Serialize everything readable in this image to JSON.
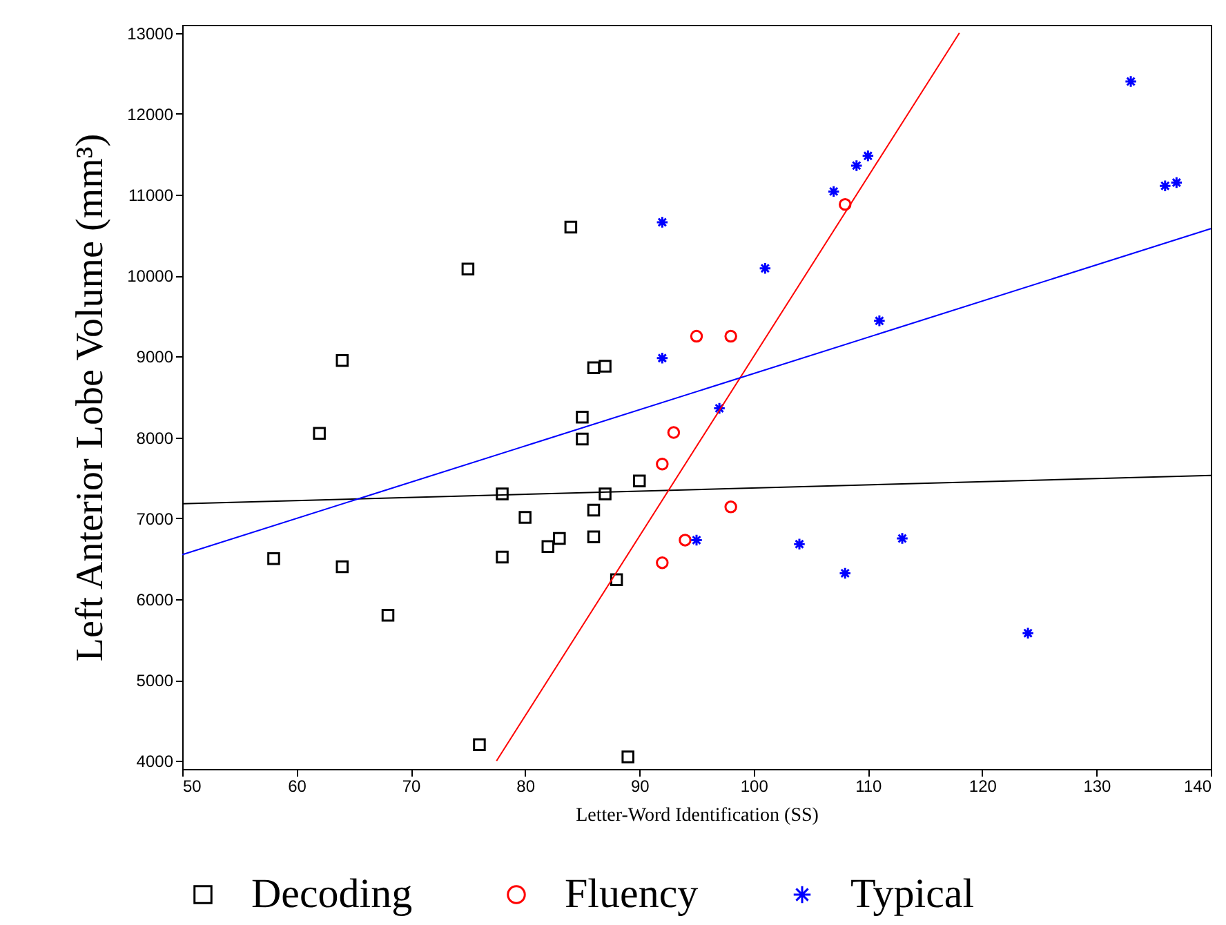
{
  "chart_data": {
    "type": "scatter",
    "xlabel": "Letter-Word Identification (SS)",
    "ylabel": "Left Anterior Lobe Volume (mm³)",
    "xlim": [
      50,
      140
    ],
    "xticks": [
      50,
      60,
      70,
      80,
      90,
      100,
      110,
      120,
      130,
      140
    ],
    "ylim": [
      3900,
      13100
    ],
    "yticks": [
      4000,
      5000,
      6000,
      7000,
      8000,
      9000,
      10000,
      11000,
      12000,
      13000
    ],
    "legend": "bottom",
    "grid": false,
    "series": [
      {
        "name": "Decoding",
        "type": "scatter",
        "marker": "square",
        "color": "#000000",
        "x": [
          58,
          62,
          64,
          64,
          68,
          75,
          76,
          78,
          78,
          80,
          82,
          83,
          84,
          85,
          85,
          86,
          87,
          86,
          86,
          87,
          88,
          89,
          90
        ],
        "values": [
          6500,
          8050,
          8950,
          6400,
          5800,
          10080,
          4200,
          7300,
          6520,
          7010,
          6650,
          6750,
          10600,
          8250,
          7980,
          8860,
          8880,
          7100,
          6770,
          7300,
          6240,
          4050,
          7460
        ]
      },
      {
        "name": "Fluency",
        "type": "scatter",
        "marker": "circle",
        "color": "#ff0000",
        "x": [
          92,
          92,
          93,
          94,
          95,
          98,
          98,
          108
        ],
        "values": [
          7670,
          6450,
          8060,
          6730,
          9250,
          9250,
          7140,
          10880
        ]
      },
      {
        "name": "Typical",
        "type": "scatter",
        "marker": "cross",
        "color": "#0000ff",
        "x": [
          92,
          92,
          95,
          97,
          101,
          104,
          107,
          108,
          109,
          110,
          111,
          113,
          124,
          133,
          136,
          137
        ],
        "values": [
          10660,
          8980,
          6730,
          8360,
          10090,
          6680,
          11040,
          6320,
          11360,
          11480,
          9440,
          6750,
          5580,
          12400,
          11110,
          11150
        ]
      },
      {
        "type": "line",
        "color": "#000000",
        "x": [
          50,
          140
        ],
        "values": [
          7180,
          7530
        ]
      },
      {
        "type": "line",
        "color": "#ff0000",
        "x": [
          77.5,
          118
        ],
        "values": [
          4000,
          13000
        ]
      },
      {
        "type": "line",
        "color": "#0000ff",
        "x": [
          50,
          140
        ],
        "values": [
          6550,
          10580
        ]
      }
    ]
  }
}
